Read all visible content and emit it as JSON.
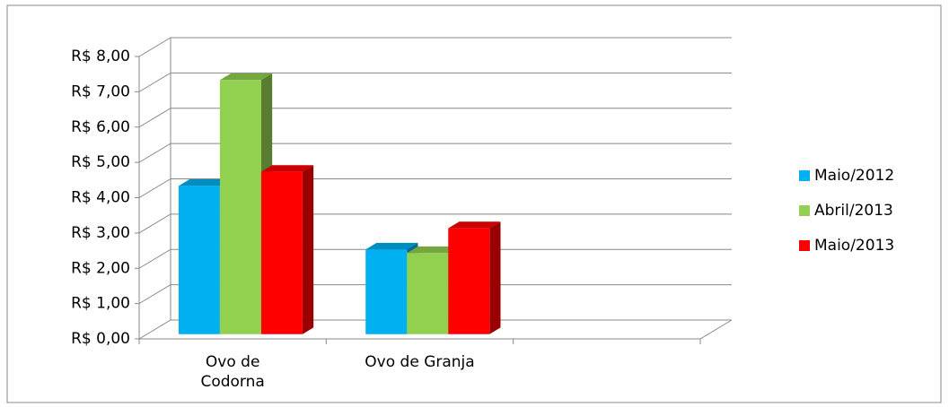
{
  "chart_data": {
    "type": "bar",
    "categories": [
      "Ovo de Codorna",
      "Ovo de Granja",
      null
    ],
    "series": [
      {
        "name": "Maio/2012",
        "color": "#00b0f0",
        "values": [
          4.2,
          2.4,
          null
        ]
      },
      {
        "name": "Abril/2013",
        "color": "#92d050",
        "values": [
          7.2,
          2.3,
          null
        ]
      },
      {
        "name": "Maio/2013",
        "color": "#ff0000",
        "values": [
          4.6,
          3.0,
          null
        ]
      }
    ],
    "ylim": [
      0,
      8
    ],
    "yticks": [
      {
        "value": 0,
        "label": "R$ 0,00"
      },
      {
        "value": 1,
        "label": "R$ 1,00"
      },
      {
        "value": 2,
        "label": "R$ 2,00"
      },
      {
        "value": 3,
        "label": "R$ 3,00"
      },
      {
        "value": 4,
        "label": "R$ 4,00"
      },
      {
        "value": 5,
        "label": "R$ 5,00"
      },
      {
        "value": 6,
        "label": "R$ 6,00"
      },
      {
        "value": 7,
        "label": "R$ 7,00"
      },
      {
        "value": 8,
        "label": "R$ 8,00"
      }
    ],
    "grid": true,
    "legend": "right"
  }
}
